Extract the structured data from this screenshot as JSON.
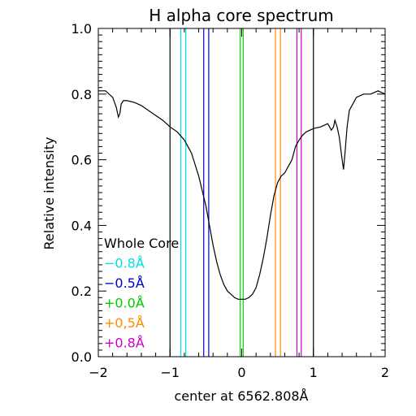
{
  "chart_data": {
    "type": "line",
    "title": "H alpha core spectrum",
    "xlabel": "center at 6562.808Å",
    "ylabel": "Relative intensity",
    "xlim": [
      -2,
      2
    ],
    "ylim": [
      0.0,
      1.0
    ],
    "x_ticks": [
      "−2",
      "−1",
      "0",
      "1",
      "2"
    ],
    "y_ticks": [
      "0.0",
      "0.2",
      "0.4",
      "0.6",
      "0.8",
      "1.0"
    ],
    "grid": false,
    "series": [
      {
        "color": "#000000",
        "x": [
          -2.0,
          -1.9,
          -1.8,
          -1.75,
          -1.72,
          -1.7,
          -1.68,
          -1.65,
          -1.6,
          -1.5,
          -1.4,
          -1.3,
          -1.2,
          -1.1,
          -1.0,
          -0.9,
          -0.8,
          -0.7,
          -0.6,
          -0.5,
          -0.45,
          -0.4,
          -0.35,
          -0.3,
          -0.25,
          -0.2,
          -0.15,
          -0.1,
          -0.05,
          0.0,
          0.05,
          0.1,
          0.15,
          0.2,
          0.25,
          0.3,
          0.35,
          0.4,
          0.45,
          0.5,
          0.55,
          0.6,
          0.65,
          0.7,
          0.75,
          0.8,
          0.85,
          0.9,
          1.0,
          1.1,
          1.2,
          1.25,
          1.28,
          1.3,
          1.33,
          1.36,
          1.4,
          1.42,
          1.44,
          1.47,
          1.5,
          1.6,
          1.7,
          1.8,
          1.9,
          2.0
        ],
        "y": [
          0.81,
          0.81,
          0.79,
          0.76,
          0.73,
          0.74,
          0.77,
          0.78,
          0.78,
          0.775,
          0.765,
          0.75,
          0.735,
          0.72,
          0.7,
          0.685,
          0.66,
          0.62,
          0.55,
          0.46,
          0.4,
          0.34,
          0.29,
          0.25,
          0.22,
          0.2,
          0.19,
          0.18,
          0.175,
          0.175,
          0.175,
          0.18,
          0.19,
          0.21,
          0.25,
          0.3,
          0.36,
          0.43,
          0.49,
          0.53,
          0.55,
          0.56,
          0.58,
          0.6,
          0.64,
          0.66,
          0.675,
          0.685,
          0.695,
          0.7,
          0.71,
          0.69,
          0.7,
          0.72,
          0.7,
          0.67,
          0.6,
          0.57,
          0.62,
          0.7,
          0.75,
          0.79,
          0.8,
          0.8,
          0.81,
          0.8
        ]
      }
    ],
    "bands": [
      {
        "label": "Whole Core",
        "color": "#000000",
        "edges": [
          -1.0,
          1.0
        ]
      },
      {
        "label": "−0.8Å",
        "color": "#00e0e0",
        "edges": [
          -0.85,
          -0.78
        ]
      },
      {
        "label": "−0.5Å",
        "color": "#0000cc",
        "edges": [
          -0.53,
          -0.46
        ]
      },
      {
        "label": "+0.0Å",
        "color": "#00cc00",
        "edges": [
          -0.02,
          0.02
        ]
      },
      {
        "label": "+0,5Å",
        "color": "#ff8c00",
        "edges": [
          0.47,
          0.54
        ]
      },
      {
        "label": "+0.8Å",
        "color": "#cc00cc",
        "edges": [
          0.77,
          0.83
        ]
      }
    ]
  }
}
